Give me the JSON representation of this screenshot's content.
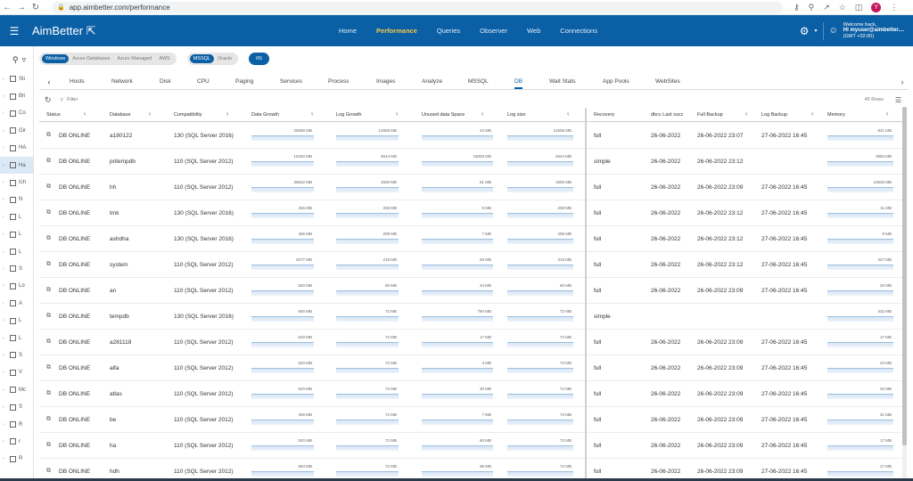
{
  "browser": {
    "url": "app.aimbetter.com/performance",
    "profile_initial": "Y"
  },
  "app": {
    "logo": "AimBetter"
  },
  "topnav": [
    "Home",
    "Performance",
    "Queries",
    "Observer",
    "Web",
    "Connections"
  ],
  "user": {
    "welcome": "Welcome back,",
    "name": "Hi myuser@aimbetter....",
    "tz": "(GMT +02:00)"
  },
  "sidebar": [
    "Sti",
    "Bri",
    "Co",
    "Gir",
    "HA",
    "Ha",
    "Ich",
    "N",
    "L",
    "L",
    "L",
    "S",
    "Lo",
    "A",
    "L",
    "L",
    "S",
    "V",
    "Mc",
    "S",
    "R",
    "r",
    "R"
  ],
  "chips": {
    "platform": [
      "Windows",
      "Azure Databases",
      "Azure Managed",
      "AWS"
    ],
    "engine": [
      "MSSQL",
      "Oracle"
    ],
    "extra": "IIS"
  },
  "tabs": [
    "Hosts",
    "Network",
    "Disk",
    "CPU",
    "Paging",
    "Services",
    "Process",
    "Images",
    "Analyze",
    "MSSQL",
    "DB",
    "Wait Stats",
    "App Pools",
    "WebSites"
  ],
  "toolbar": {
    "filter": "Filter",
    "rows": "45 Rows"
  },
  "columns": [
    "Status",
    "Database",
    "Compatibility",
    "Data Growth",
    "Log Growth",
    "Unused data Space",
    "Log size",
    "Recovery",
    "dbcc Last succ",
    "Full Backup",
    "Log Backup",
    "Memory"
  ],
  "rows": [
    {
      "status": "DB ONLINE",
      "db": "a180122",
      "compat": "130 (SQL Server 2016)",
      "dg": "26088 MB",
      "lg": "14606 MB",
      "unused": "22 MB",
      "logsize": "14606 MB",
      "recovery": "full",
      "dbcc": "26-06-2022",
      "full": "26-06-2022 23:07",
      "log": "27-06-2022 16:45",
      "mem": "841 MB"
    },
    {
      "status": "DB ONLINE",
      "db": "pritempdb",
      "compat": "110 (SQL Server 2012)",
      "dg": "15420 MB",
      "lg": "4544 MB",
      "unused": "15000 MB",
      "logsize": "4544 MB",
      "recovery": "simple",
      "dbcc": "26-06-2022",
      "full": "26-06-2022 23:12",
      "log": "",
      "mem": "3993 MB"
    },
    {
      "status": "DB ONLINE",
      "db": "hh",
      "compat": "110 (SQL Server 2012)",
      "dg": "35642 MB",
      "lg": "1600 MB",
      "unused": "51 MB",
      "logsize": "1600 MB",
      "recovery": "full",
      "dbcc": "26-06-2022",
      "full": "26-06-2022 23:09",
      "log": "27-06-2022 16:45",
      "mem": "10536 MB"
    },
    {
      "status": "DB ONLINE",
      "db": "tmk",
      "compat": "130 (SQL Server 2016)",
      "dg": "456 MB",
      "lg": "208 MB",
      "unused": "9 MB",
      "logsize": "208 MB",
      "recovery": "full",
      "dbcc": "26-06-2022",
      "full": "26-06-2022 23:12",
      "log": "27-06-2022 16:45",
      "mem": "11 MB"
    },
    {
      "status": "DB ONLINE",
      "db": "ashdha",
      "compat": "130 (SQL Server 2016)",
      "dg": "456 MB",
      "lg": "208 MB",
      "unused": "7 MB",
      "logsize": "208 MB",
      "recovery": "full",
      "dbcc": "26-06-2022",
      "full": "26-06-2022 23:12",
      "log": "27-06-2022 16:45",
      "mem": "8 MB"
    },
    {
      "status": "DB ONLINE",
      "db": "system",
      "compat": "110 (SQL Server 2012)",
      "dg": "2077 MB",
      "lg": "219 MB",
      "unused": "56 MB",
      "logsize": "219 MB",
      "recovery": "full",
      "dbcc": "26-06-2022",
      "full": "26-06-2022 23:12",
      "log": "27-06-2022 16:45",
      "mem": "427 MB"
    },
    {
      "status": "DB ONLINE",
      "db": "an",
      "compat": "110 (SQL Server 2012)",
      "dg": "520 MB",
      "lg": "80 MB",
      "unused": "34 MB",
      "logsize": "80 MB",
      "recovery": "full",
      "dbcc": "26-06-2022",
      "full": "26-06-2022 23:09",
      "log": "27-06-2022 16:45",
      "mem": "20 MB"
    },
    {
      "status": "DB ONLINE",
      "db": "tempdb",
      "compat": "130 (SQL Server 2016)",
      "dg": "800 MB",
      "lg": "72 MB",
      "unused": "780 MB",
      "logsize": "72 MB",
      "recovery": "simple",
      "dbcc": "",
      "full": "",
      "log": "",
      "mem": "432 MB"
    },
    {
      "status": "DB ONLINE",
      "db": "a281118",
      "compat": "110 (SQL Server 2012)",
      "dg": "520 MB",
      "lg": "72 MB",
      "unused": "17 MB",
      "logsize": "72 MB",
      "recovery": "full",
      "dbcc": "26-06-2022",
      "full": "26-06-2022 23:09",
      "log": "27-06-2022 16:45",
      "mem": "17 MB"
    },
    {
      "status": "DB ONLINE",
      "db": "alfa",
      "compat": "110 (SQL Server 2012)",
      "dg": "520 MB",
      "lg": "72 MB",
      "unused": "4 MB",
      "logsize": "72 MB",
      "recovery": "full",
      "dbcc": "26-06-2022",
      "full": "26-06-2022 23:09",
      "log": "27-06-2022 16:45",
      "mem": "23 MB"
    },
    {
      "status": "DB ONLINE",
      "db": "atlas",
      "compat": "110 (SQL Server 2012)",
      "dg": "520 MB",
      "lg": "72 MB",
      "unused": "30 MB",
      "logsize": "72 MB",
      "recovery": "full",
      "dbcc": "26-06-2022",
      "full": "26-06-2022 23:09",
      "log": "27-06-2022 16:45",
      "mem": "32 MB"
    },
    {
      "status": "DB ONLINE",
      "db": "be",
      "compat": "110 (SQL Server 2012)",
      "dg": "456 MB",
      "lg": "72 MB",
      "unused": "7 MB",
      "logsize": "72 MB",
      "recovery": "full",
      "dbcc": "26-06-2022",
      "full": "26-06-2022 23:09",
      "log": "27-06-2022 16:45",
      "mem": "31 MB"
    },
    {
      "status": "DB ONLINE",
      "db": "ha",
      "compat": "110 (SQL Server 2012)",
      "dg": "520 MB",
      "lg": "72 MB",
      "unused": "60 MB",
      "logsize": "72 MB",
      "recovery": "full",
      "dbcc": "26-06-2022",
      "full": "26-06-2022 23:09",
      "log": "27-06-2022 16:45",
      "mem": "17 MB"
    },
    {
      "status": "DB ONLINE",
      "db": "hdh",
      "compat": "110 (SQL Server 2012)",
      "dg": "584 MB",
      "lg": "72 MB",
      "unused": "96 MB",
      "logsize": "72 MB",
      "recovery": "full",
      "dbcc": "26-06-2022",
      "full": "26-06-2022 23:09",
      "log": "27-06-2022 16:45",
      "mem": "17 MB"
    }
  ]
}
